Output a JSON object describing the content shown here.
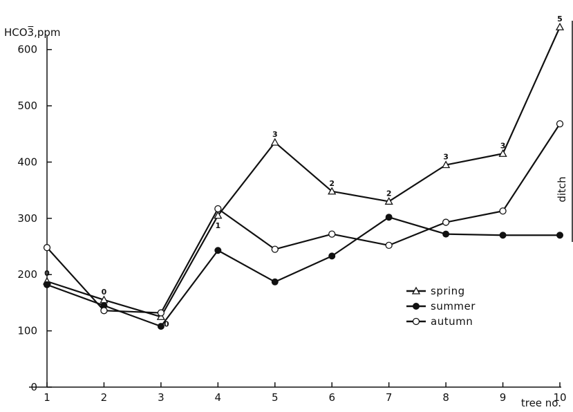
{
  "chart_data": {
    "type": "line",
    "ylabel": "HCO3̅,ppm",
    "xlabel": "tree no.",
    "side_label": "ditch",
    "x": [
      1,
      2,
      3,
      4,
      5,
      6,
      7,
      8,
      9,
      10
    ],
    "xticks": [
      "1",
      "2",
      "3",
      "4",
      "5",
      "6",
      "7",
      "8",
      "9",
      "10"
    ],
    "yticks": [
      "0",
      "100",
      "200",
      "300",
      "400",
      "500",
      "600"
    ],
    "ylim": [
      0,
      650
    ],
    "xlim": [
      1,
      10
    ],
    "grid": false,
    "legend_position": "right",
    "series": [
      {
        "name": "spring",
        "marker": "triangle",
        "values": [
          188,
          155,
          125,
          305,
          435,
          348,
          330,
          395,
          415,
          640
        ]
      },
      {
        "name": "summer",
        "marker": "filled-circle",
        "values": [
          182,
          145,
          108,
          243,
          187,
          233,
          302,
          272,
          270,
          270
        ]
      },
      {
        "name": "autumn",
        "marker": "open-circle",
        "values": [
          248,
          136,
          132,
          317,
          245,
          272,
          252,
          293,
          313,
          468
        ]
      }
    ],
    "annotations": [
      {
        "series": "spring",
        "x": 1,
        "text": "0"
      },
      {
        "series": "spring",
        "x": 2,
        "text": "0"
      },
      {
        "series": "spring",
        "x": 3,
        "text": "0"
      },
      {
        "series": "spring",
        "x": 4,
        "text": "1"
      },
      {
        "series": "spring",
        "x": 5,
        "text": "3"
      },
      {
        "series": "spring",
        "x": 6,
        "text": "2"
      },
      {
        "series": "spring",
        "x": 7,
        "text": "2"
      },
      {
        "series": "spring",
        "x": 8,
        "text": "3"
      },
      {
        "series": "spring",
        "x": 9,
        "text": "3"
      },
      {
        "series": "spring",
        "x": 10,
        "text": "5"
      }
    ]
  }
}
